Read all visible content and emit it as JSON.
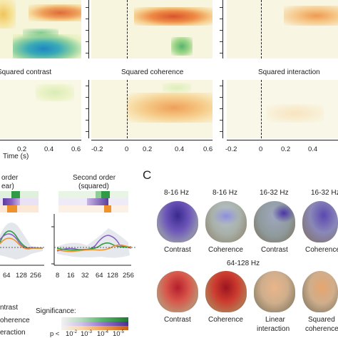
{
  "panelA": {
    "panel_titles": [
      "Squared contrast",
      "Squared coherence",
      "Squared interaction"
    ],
    "xlabel": "Time (s)",
    "xticks_left": [
      "0.2",
      "0.4",
      "0.6"
    ],
    "xticks_other": [
      "-0.2",
      "0",
      "0.2",
      "0.4",
      "0.6"
    ]
  },
  "panelB": {
    "first_order_title": [
      "order",
      "ear)"
    ],
    "second_order_title": [
      "Second order",
      "(squared)"
    ],
    "xticks_left": [
      "64",
      "128",
      "256"
    ],
    "xticks_right": [
      "8",
      "16",
      "32",
      "64",
      "128",
      "256"
    ],
    "legend": [
      "ntrast",
      "oherence",
      "eraction"
    ],
    "significance_label": "Significance:",
    "sig_p": "p <",
    "sig_ticks": [
      "10",
      "10",
      "10",
      "10"
    ],
    "sig_exps": [
      "-2",
      "-3",
      "-4",
      "-5"
    ]
  },
  "panelC": {
    "letter": "C",
    "row1_freqs": [
      "8-16 Hz",
      "8-16 Hz",
      "16-32 Hz",
      "16-32 Hz"
    ],
    "row1_labels": [
      "Contrast",
      "Coherence",
      "Contrast",
      "Coherence"
    ],
    "row2_freq": "64-128 Hz",
    "row2_labels": [
      "Contrast",
      "Coherence",
      "Linear",
      "Squared"
    ],
    "row2_sub": [
      "",
      "",
      "interaction",
      "coherence"
    ]
  },
  "colors": {
    "contrast": "#2f9b44",
    "coherence": "#8a5fc0",
    "interaction": "#f0922b",
    "heat_orange": "#e6793a",
    "heat_blue": "#2f8fc8",
    "heat_bg": "#f7f5dc"
  }
}
